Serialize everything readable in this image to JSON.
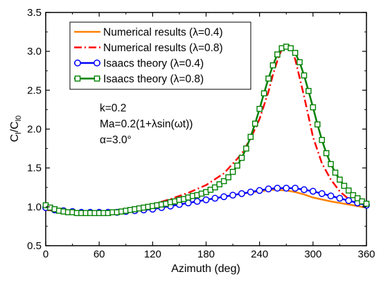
{
  "chart_data": {
    "type": "line",
    "xlabel": "Azimuth (deg)",
    "ylabel": "C_l/C_l0",
    "ylabel_parts": {
      "main": "C",
      "sub1": "l",
      "slash": "/C",
      "sub2": "l0"
    },
    "xlim": [
      0,
      360
    ],
    "ylim": [
      0.5,
      3.5
    ],
    "xticks": [
      0,
      60,
      120,
      180,
      240,
      300,
      360
    ],
    "yticks": [
      0.5,
      1.0,
      1.5,
      2.0,
      2.5,
      3.0,
      3.5
    ],
    "xtick_labels": [
      "0",
      "60",
      "120",
      "180",
      "240",
      "300",
      "360"
    ],
    "ytick_labels": [
      "0.5",
      "1.0",
      "1.5",
      "2.0",
      "2.5",
      "3.0",
      "3.5"
    ],
    "grid": false,
    "legend_placement": "top-center",
    "annotations": [
      "k=0.2",
      "Ma=0.2(1+λsin(ωt))",
      "α=3.0°"
    ],
    "series": [
      {
        "name": "Numerical results (λ=0.4)",
        "color": "#ff8000",
        "style": "solid",
        "marker": "none",
        "x": [
          0,
          20,
          40,
          60,
          80,
          100,
          120,
          140,
          160,
          180,
          200,
          220,
          240,
          255,
          270,
          280,
          290,
          300,
          320,
          340,
          360
        ],
        "y": [
          0.96,
          0.95,
          0.93,
          0.92,
          0.93,
          0.95,
          0.98,
          1.01,
          1.05,
          1.09,
          1.13,
          1.17,
          1.2,
          1.22,
          1.21,
          1.19,
          1.16,
          1.12,
          1.07,
          1.03,
          0.99
        ]
      },
      {
        "name": "Numerical results (λ=0.8)",
        "color": "#ff0000",
        "style": "dashdot",
        "marker": "none",
        "x": [
          0,
          20,
          40,
          60,
          80,
          100,
          120,
          140,
          160,
          180,
          200,
          220,
          230,
          240,
          250,
          255,
          260,
          265,
          270,
          275,
          280,
          290,
          300,
          310,
          320,
          330,
          340,
          350,
          360
        ],
        "y": [
          0.96,
          0.94,
          0.92,
          0.91,
          0.93,
          0.98,
          1.03,
          1.1,
          1.18,
          1.28,
          1.43,
          1.68,
          1.88,
          2.13,
          2.48,
          2.7,
          2.88,
          3.03,
          3.1,
          3.05,
          2.9,
          2.42,
          1.9,
          1.56,
          1.35,
          1.2,
          1.1,
          1.04,
          1.0
        ]
      },
      {
        "name": "Isaacs theory (λ=0.4)",
        "color": "#0000ff",
        "style": "solid",
        "marker": "circle",
        "x": [
          0,
          10,
          20,
          30,
          40,
          50,
          60,
          70,
          80,
          90,
          100,
          110,
          120,
          130,
          140,
          150,
          160,
          170,
          180,
          190,
          200,
          210,
          220,
          230,
          240,
          250,
          260,
          270,
          280,
          290,
          300,
          310,
          320,
          330,
          340,
          350,
          360
        ],
        "y": [
          0.99,
          0.96,
          0.95,
          0.94,
          0.93,
          0.93,
          0.93,
          0.93,
          0.93,
          0.94,
          0.95,
          0.96,
          0.97,
          0.99,
          1.01,
          1.03,
          1.05,
          1.07,
          1.09,
          1.11,
          1.13,
          1.15,
          1.17,
          1.19,
          1.21,
          1.23,
          1.24,
          1.24,
          1.24,
          1.22,
          1.2,
          1.17,
          1.14,
          1.11,
          1.08,
          1.05,
          1.02
        ]
      },
      {
        "name": "Isaacs theory (λ=0.8)",
        "color": "#008000",
        "style": "solid",
        "marker": "square",
        "x": [
          0,
          5,
          10,
          15,
          20,
          25,
          30,
          35,
          40,
          45,
          50,
          55,
          60,
          65,
          70,
          75,
          80,
          85,
          90,
          95,
          100,
          105,
          110,
          115,
          120,
          125,
          130,
          135,
          140,
          145,
          150,
          155,
          160,
          165,
          170,
          175,
          180,
          185,
          190,
          195,
          200,
          205,
          210,
          215,
          220,
          225,
          230,
          235,
          240,
          245,
          250,
          255,
          260,
          265,
          270,
          275,
          280,
          285,
          290,
          295,
          300,
          305,
          310,
          315,
          320,
          325,
          330,
          335,
          340,
          345,
          350,
          355,
          360
        ],
        "y": [
          1.02,
          0.99,
          0.97,
          0.95,
          0.94,
          0.93,
          0.93,
          0.92,
          0.92,
          0.92,
          0.92,
          0.92,
          0.92,
          0.92,
          0.92,
          0.93,
          0.93,
          0.94,
          0.95,
          0.96,
          0.97,
          0.98,
          0.99,
          1.0,
          1.01,
          1.02,
          1.03,
          1.04,
          1.06,
          1.07,
          1.09,
          1.1,
          1.12,
          1.14,
          1.15,
          1.17,
          1.19,
          1.22,
          1.25,
          1.29,
          1.33,
          1.38,
          1.45,
          1.53,
          1.63,
          1.75,
          1.9,
          2.07,
          2.26,
          2.46,
          2.65,
          2.82,
          2.96,
          3.04,
          3.06,
          3.04,
          2.98,
          2.86,
          2.69,
          2.49,
          2.28,
          2.06,
          1.86,
          1.69,
          1.55,
          1.44,
          1.35,
          1.27,
          1.21,
          1.15,
          1.11,
          1.07,
          1.04
        ]
      }
    ]
  }
}
